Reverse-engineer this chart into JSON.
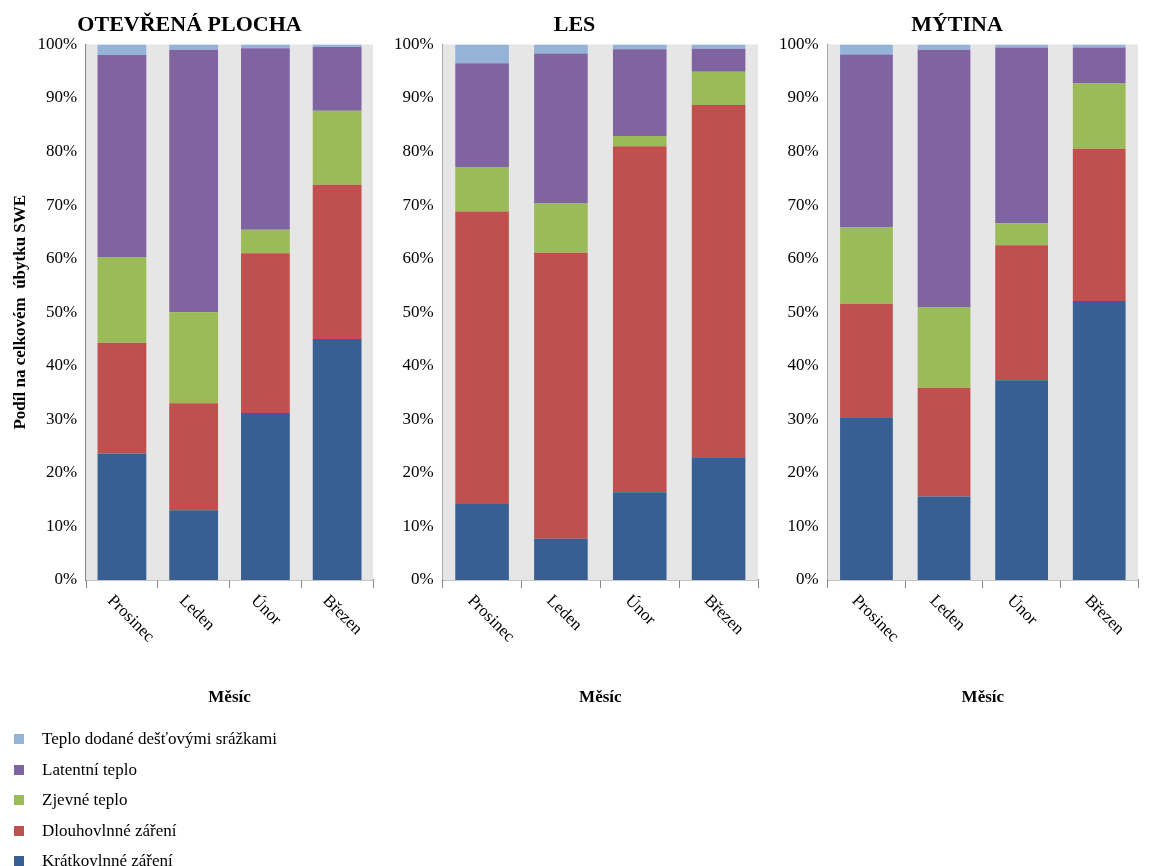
{
  "chart_data": [
    {
      "type": "bar",
      "stacked": true,
      "title": "OTEVŘENÁ PLOCHA",
      "xlabel": "Měsíc",
      "ylabel": "Podíl na celkovém  úbytku SWE",
      "legend": "bottom left",
      "grid": false,
      "categories": [
        "Prosinec",
        "Leden",
        "Únor",
        "Březen"
      ],
      "ylim": [
        0,
        100
      ],
      "yticks": [
        {
          "value": 0,
          "label": "0%"
        },
        {
          "value": 10,
          "label": "10%"
        },
        {
          "value": 20,
          "label": "20%"
        },
        {
          "value": 30,
          "label": "30%"
        },
        {
          "value": 40,
          "label": "40%"
        },
        {
          "value": 50,
          "label": "50%"
        },
        {
          "value": 60,
          "label": "60%"
        },
        {
          "value": 70,
          "label": "70%"
        },
        {
          "value": 80,
          "label": "80%"
        },
        {
          "value": 90,
          "label": "90%"
        },
        {
          "value": 100,
          "label": "100%"
        }
      ],
      "series": [
        {
          "name": "Krátkovlnné záření",
          "color": "#375f92",
          "values": [
            23.6,
            13.0,
            31.2,
            45.0
          ]
        },
        {
          "name": "Dlouhovlnné záření",
          "color": "#c0504d",
          "values": [
            20.7,
            20.0,
            29.8,
            28.8
          ]
        },
        {
          "name": "Zjevné teplo",
          "color": "#9bbb59",
          "values": [
            16.0,
            17.0,
            4.4,
            13.8
          ]
        },
        {
          "name": "Latentní teplo",
          "color": "#8064a2",
          "values": [
            37.7,
            49.0,
            33.9,
            11.9
          ]
        },
        {
          "name": "Teplo dodané dešťovými srážkami",
          "color": "#95b3d7",
          "values": [
            2.0,
            1.0,
            0.7,
            0.5
          ]
        }
      ]
    },
    {
      "type": "bar",
      "stacked": true,
      "title": "LES",
      "xlabel": "Měsíc",
      "grid": false,
      "categories": [
        "Prosinec",
        "Leden",
        "Únor",
        "Březen"
      ],
      "ylim": [
        0,
        100
      ],
      "yticks": [
        {
          "value": 0,
          "label": "0%"
        },
        {
          "value": 10,
          "label": "10%"
        },
        {
          "value": 20,
          "label": "20%"
        },
        {
          "value": 30,
          "label": "30%"
        },
        {
          "value": 40,
          "label": "40%"
        },
        {
          "value": 50,
          "label": "50%"
        },
        {
          "value": 60,
          "label": "60%"
        },
        {
          "value": 70,
          "label": "70%"
        },
        {
          "value": 80,
          "label": "80%"
        },
        {
          "value": 90,
          "label": "90%"
        },
        {
          "value": 100,
          "label": "100%"
        }
      ],
      "series": [
        {
          "color": "#375f92",
          "values": [
            14.2,
            7.7,
            16.4,
            22.9
          ]
        },
        {
          "color": "#c0504d",
          "values": [
            54.6,
            53.4,
            64.6,
            65.8
          ]
        },
        {
          "color": "#9bbb59",
          "values": [
            8.3,
            9.2,
            1.9,
            6.2
          ]
        },
        {
          "color": "#8064a2",
          "values": [
            19.4,
            28.0,
            16.2,
            4.3
          ]
        },
        {
          "color": "#95b3d7",
          "values": [
            3.5,
            1.7,
            0.9,
            0.8
          ]
        }
      ]
    },
    {
      "type": "bar",
      "stacked": true,
      "title": "MÝTINA",
      "xlabel": "Měsíc",
      "grid": false,
      "categories": [
        "Prosinec",
        "Leden",
        "Únor",
        "Březen"
      ],
      "ylim": [
        0,
        100
      ],
      "yticks": [
        {
          "value": 0,
          "label": "0%"
        },
        {
          "value": 10,
          "label": "10%"
        },
        {
          "value": 20,
          "label": "20%"
        },
        {
          "value": 30,
          "label": "30%"
        },
        {
          "value": 40,
          "label": "40%"
        },
        {
          "value": 50,
          "label": "50%"
        },
        {
          "value": 60,
          "label": "60%"
        },
        {
          "value": 70,
          "label": "70%"
        },
        {
          "value": 80,
          "label": "80%"
        },
        {
          "value": 90,
          "label": "90%"
        },
        {
          "value": 100,
          "label": "100%"
        }
      ],
      "series": [
        {
          "color": "#375f92",
          "values": [
            30.4,
            15.6,
            37.3,
            52.1
          ]
        },
        {
          "color": "#c0504d",
          "values": [
            21.2,
            20.3,
            25.2,
            28.4
          ]
        },
        {
          "color": "#9bbb59",
          "values": [
            14.3,
            15.0,
            4.1,
            12.2
          ]
        },
        {
          "color": "#8064a2",
          "values": [
            32.2,
            48.1,
            32.8,
            6.7
          ]
        },
        {
          "color": "#95b3d7",
          "values": [
            1.9,
            1.0,
            0.6,
            0.6
          ]
        }
      ]
    }
  ]
}
